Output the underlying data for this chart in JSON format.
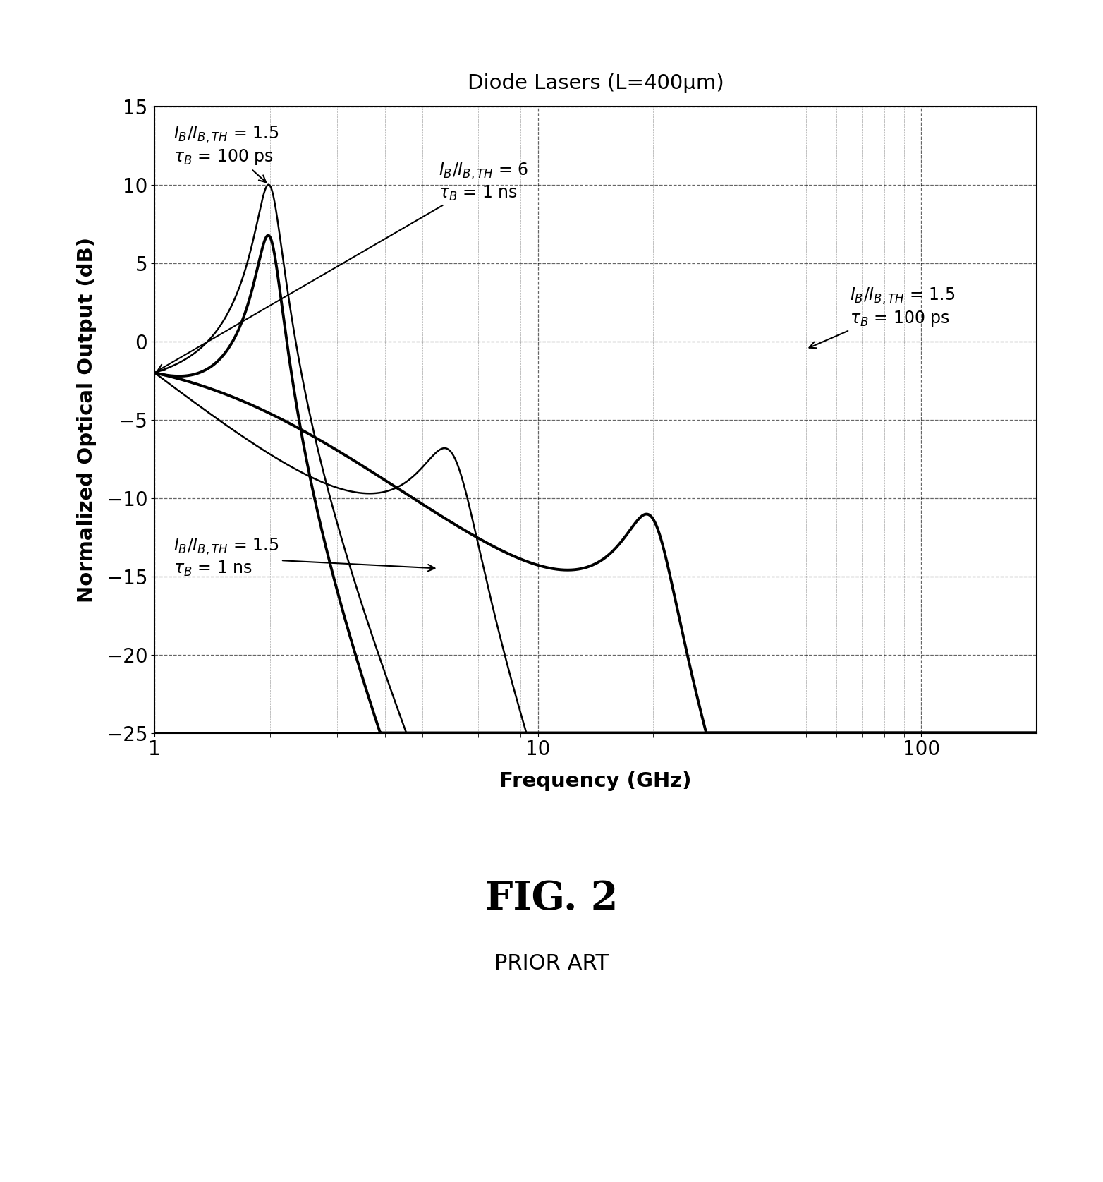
{
  "title": "Diode Lasers (L=400μm)",
  "xlabel": "Frequency (GHz)",
  "ylabel": "Normalized Optical Output (dB)",
  "fig_label": "FIG. 2",
  "fig_sublabel": "PRIOR ART",
  "xlim": [
    1,
    200
  ],
  "ylim": [
    -25,
    15
  ],
  "yticks": [
    -25,
    -20,
    -15,
    -10,
    -5,
    0,
    5,
    10,
    15
  ],
  "ann1_text1": "I",
  "ann1_text2": "B",
  "curve1_fr": 2.0,
  "curve1_gamma": 0.28,
  "curve1_tauB": 0.1,
  "curve1_lw": 1.8,
  "curve2_fr": 6.0,
  "curve2_gamma": 1.8,
  "curve2_tauB": 1.0,
  "curve2_lw": 1.8,
  "curve3_fr": 2.0,
  "curve3_gamma": 0.28,
  "curve3_tauB": 1.0,
  "curve3_lw": 2.8,
  "curve4_fr": 20.0,
  "curve4_gamma": 5.5,
  "curve4_tauB": 0.1,
  "curve4_lw": 2.8,
  "dc_level": -2.0,
  "background": "#ffffff"
}
